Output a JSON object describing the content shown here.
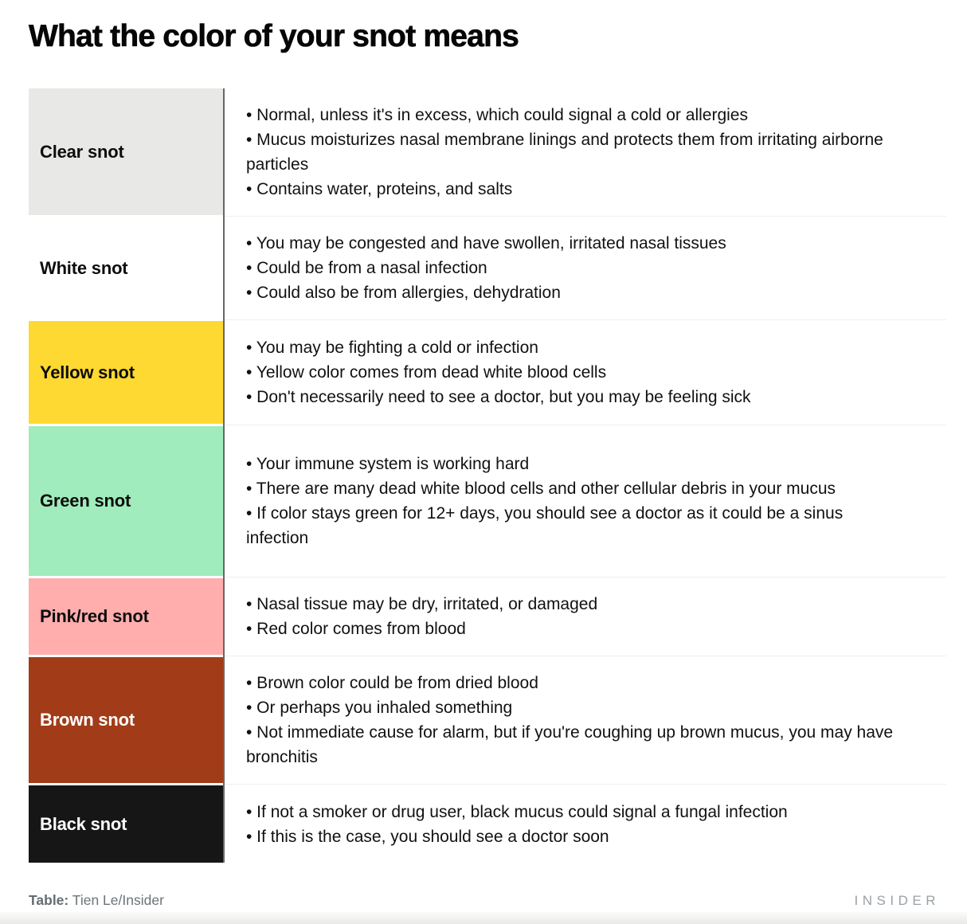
{
  "title": "What the color of your snot means",
  "chart_data": {
    "type": "table",
    "bullet_glyph": "•",
    "rows": [
      {
        "label": "Clear snot",
        "color": "#e8e8e6",
        "text_color": "#0d0d0d",
        "bullets": [
          "Normal, unless it's in excess, which could signal a cold or allergies",
          "Mucus moisturizes nasal membrane linings and protects them from irritating airborne particles",
          "Contains water, proteins, and salts"
        ]
      },
      {
        "label": "White snot",
        "color": "#ffffff",
        "text_color": "#0d0d0d",
        "bullets": [
          "You may be congested and have swollen, irritated nasal tissues",
          "Could be from a nasal infection",
          "Could also be from allergies, dehydration"
        ]
      },
      {
        "label": "Yellow snot",
        "color": "#fed931",
        "text_color": "#0d0d0d",
        "bullets": [
          "You may be fighting a cold or infection",
          "Yellow color comes from dead white blood cells",
          "Don't necessarily need to see a doctor, but you may be feeling sick"
        ]
      },
      {
        "label": "Green snot",
        "color": "#a0ecbc",
        "text_color": "#0d0d0d",
        "bullets": [
          "Your immune system is working hard",
          "There are many dead white blood cells and other cellular debris in your mucus",
          "If color stays green for 12+ days, you should see a doctor as it could be a sinus infection"
        ]
      },
      {
        "label": "Pink/red snot",
        "color": "#ffadad",
        "text_color": "#0d0d0d",
        "bullets": [
          "Nasal tissue may be dry, irritated, or damaged",
          "Red color comes from blood"
        ]
      },
      {
        "label": "Brown snot",
        "color": "#a23c18",
        "text_color": "#ffffff",
        "bullets": [
          "Brown color could be from dried blood",
          "Or perhaps you inhaled something",
          "Not immediate cause for alarm, but if you're coughing up brown mucus, you may have bronchitis"
        ]
      },
      {
        "label": "Black snot",
        "color": "#161616",
        "text_color": "#ffffff",
        "bullets": [
          "If not a smoker or drug user, black mucus could signal a fungal infection",
          "If this is the case, you should see a doctor soon"
        ]
      }
    ]
  },
  "footer": {
    "credit_label": "Table:",
    "credit_value": "Tien Le/Insider",
    "brand": "INSIDER"
  }
}
